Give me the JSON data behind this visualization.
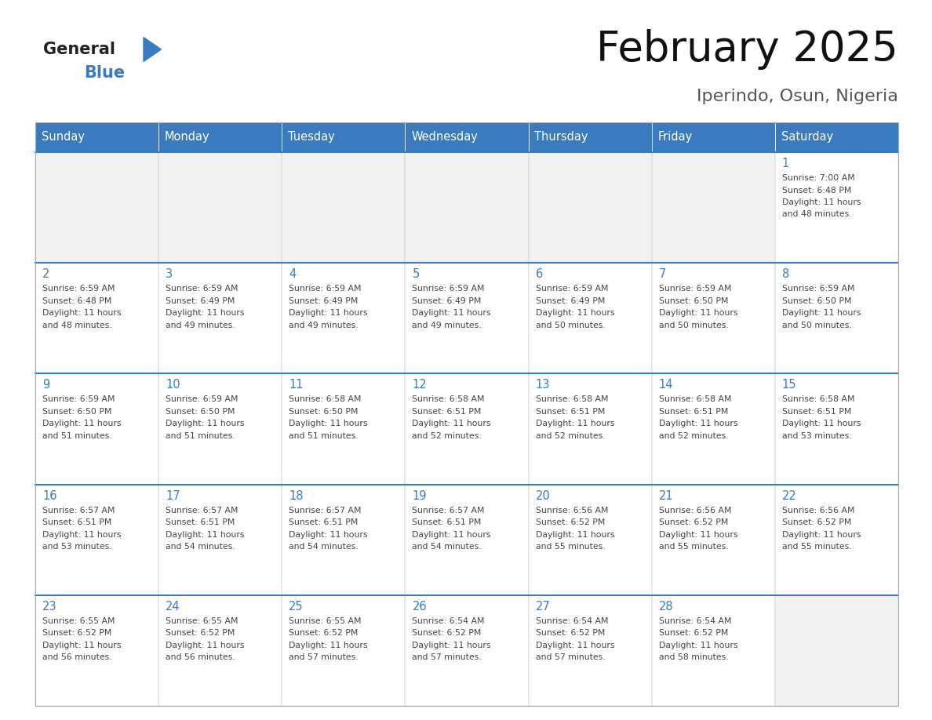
{
  "title": "February 2025",
  "subtitle": "Iperindo, Osun, Nigeria",
  "days_of_week": [
    "Sunday",
    "Monday",
    "Tuesday",
    "Wednesday",
    "Thursday",
    "Friday",
    "Saturday"
  ],
  "header_bg": "#3a7bbf",
  "header_text": "#ffffff",
  "divider_color": "#3a7bbf",
  "day_num_color": "#3a7bbf",
  "text_color": "#444444",
  "calendar_data": [
    [
      null,
      null,
      null,
      null,
      null,
      null,
      {
        "day": 1,
        "sunrise": "7:00 AM",
        "sunset": "6:48 PM",
        "daylight": "11 hours and 48 minutes."
      }
    ],
    [
      {
        "day": 2,
        "sunrise": "6:59 AM",
        "sunset": "6:48 PM",
        "daylight": "11 hours and 48 minutes."
      },
      {
        "day": 3,
        "sunrise": "6:59 AM",
        "sunset": "6:49 PM",
        "daylight": "11 hours and 49 minutes."
      },
      {
        "day": 4,
        "sunrise": "6:59 AM",
        "sunset": "6:49 PM",
        "daylight": "11 hours and 49 minutes."
      },
      {
        "day": 5,
        "sunrise": "6:59 AM",
        "sunset": "6:49 PM",
        "daylight": "11 hours and 49 minutes."
      },
      {
        "day": 6,
        "sunrise": "6:59 AM",
        "sunset": "6:49 PM",
        "daylight": "11 hours and 50 minutes."
      },
      {
        "day": 7,
        "sunrise": "6:59 AM",
        "sunset": "6:50 PM",
        "daylight": "11 hours and 50 minutes."
      },
      {
        "day": 8,
        "sunrise": "6:59 AM",
        "sunset": "6:50 PM",
        "daylight": "11 hours and 50 minutes."
      }
    ],
    [
      {
        "day": 9,
        "sunrise": "6:59 AM",
        "sunset": "6:50 PM",
        "daylight": "11 hours and 51 minutes."
      },
      {
        "day": 10,
        "sunrise": "6:59 AM",
        "sunset": "6:50 PM",
        "daylight": "11 hours and 51 minutes."
      },
      {
        "day": 11,
        "sunrise": "6:58 AM",
        "sunset": "6:50 PM",
        "daylight": "11 hours and 51 minutes."
      },
      {
        "day": 12,
        "sunrise": "6:58 AM",
        "sunset": "6:51 PM",
        "daylight": "11 hours and 52 minutes."
      },
      {
        "day": 13,
        "sunrise": "6:58 AM",
        "sunset": "6:51 PM",
        "daylight": "11 hours and 52 minutes."
      },
      {
        "day": 14,
        "sunrise": "6:58 AM",
        "sunset": "6:51 PM",
        "daylight": "11 hours and 52 minutes."
      },
      {
        "day": 15,
        "sunrise": "6:58 AM",
        "sunset": "6:51 PM",
        "daylight": "11 hours and 53 minutes."
      }
    ],
    [
      {
        "day": 16,
        "sunrise": "6:57 AM",
        "sunset": "6:51 PM",
        "daylight": "11 hours and 53 minutes."
      },
      {
        "day": 17,
        "sunrise": "6:57 AM",
        "sunset": "6:51 PM",
        "daylight": "11 hours and 54 minutes."
      },
      {
        "day": 18,
        "sunrise": "6:57 AM",
        "sunset": "6:51 PM",
        "daylight": "11 hours and 54 minutes."
      },
      {
        "day": 19,
        "sunrise": "6:57 AM",
        "sunset": "6:51 PM",
        "daylight": "11 hours and 54 minutes."
      },
      {
        "day": 20,
        "sunrise": "6:56 AM",
        "sunset": "6:52 PM",
        "daylight": "11 hours and 55 minutes."
      },
      {
        "day": 21,
        "sunrise": "6:56 AM",
        "sunset": "6:52 PM",
        "daylight": "11 hours and 55 minutes."
      },
      {
        "day": 22,
        "sunrise": "6:56 AM",
        "sunset": "6:52 PM",
        "daylight": "11 hours and 55 minutes."
      }
    ],
    [
      {
        "day": 23,
        "sunrise": "6:55 AM",
        "sunset": "6:52 PM",
        "daylight": "11 hours and 56 minutes."
      },
      {
        "day": 24,
        "sunrise": "6:55 AM",
        "sunset": "6:52 PM",
        "daylight": "11 hours and 56 minutes."
      },
      {
        "day": 25,
        "sunrise": "6:55 AM",
        "sunset": "6:52 PM",
        "daylight": "11 hours and 57 minutes."
      },
      {
        "day": 26,
        "sunrise": "6:54 AM",
        "sunset": "6:52 PM",
        "daylight": "11 hours and 57 minutes."
      },
      {
        "day": 27,
        "sunrise": "6:54 AM",
        "sunset": "6:52 PM",
        "daylight": "11 hours and 57 minutes."
      },
      {
        "day": 28,
        "sunrise": "6:54 AM",
        "sunset": "6:52 PM",
        "daylight": "11 hours and 58 minutes."
      },
      null
    ]
  ],
  "logo_general_color": "#222222",
  "logo_blue_color": "#3a7bbf",
  "logo_triangle_color": "#3a7bbf"
}
